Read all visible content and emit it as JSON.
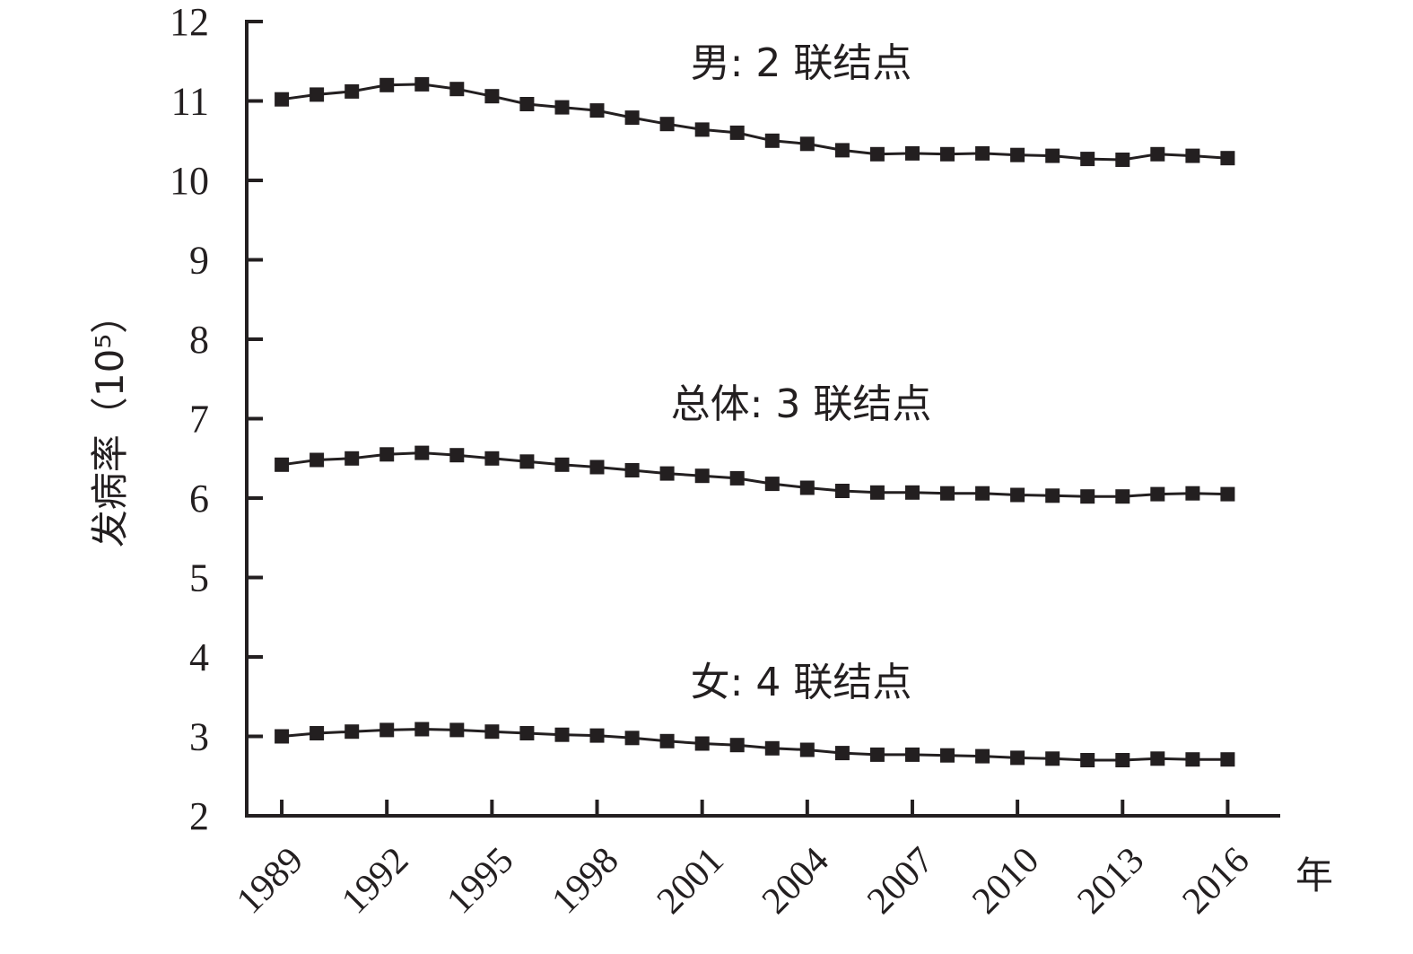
{
  "chart_data": {
    "type": "line",
    "ylabel": "发病率（10⁵）",
    "xunit": "年",
    "ylim": [
      2,
      12
    ],
    "yticks": [
      "2",
      "3",
      "4",
      "5",
      "6",
      "7",
      "8",
      "9",
      "10",
      "11",
      "12"
    ],
    "xlim": [
      1988,
      2017.5
    ],
    "xticks": [
      "1989",
      "1992",
      "1995",
      "1998",
      "2001",
      "2004",
      "2007",
      "2010",
      "2013",
      "2016"
    ],
    "grid": false,
    "marker": "square",
    "line_color": "#231f20",
    "x": [
      1989,
      1990,
      1991,
      1992,
      1993,
      1994,
      1995,
      1996,
      1997,
      1998,
      1999,
      2000,
      2001,
      2002,
      2003,
      2004,
      2005,
      2006,
      2007,
      2008,
      2009,
      2010,
      2011,
      2012,
      2013,
      2014,
      2015,
      2016
    ],
    "series": [
      {
        "annotation": "男: 2 联结点",
        "values": [
          11.02,
          11.08,
          11.12,
          11.2,
          11.21,
          11.15,
          11.06,
          10.96,
          10.92,
          10.88,
          10.79,
          10.71,
          10.64,
          10.6,
          10.5,
          10.46,
          10.38,
          10.33,
          10.34,
          10.33,
          10.34,
          10.32,
          10.31,
          10.27,
          10.26,
          10.33,
          10.31,
          10.28
        ]
      },
      {
        "annotation": "总体: 3 联结点",
        "values": [
          6.42,
          6.48,
          6.5,
          6.55,
          6.57,
          6.54,
          6.5,
          6.46,
          6.42,
          6.39,
          6.35,
          6.31,
          6.28,
          6.25,
          6.18,
          6.13,
          6.09,
          6.07,
          6.07,
          6.06,
          6.06,
          6.04,
          6.03,
          6.02,
          6.02,
          6.05,
          6.06,
          6.05
        ]
      },
      {
        "annotation": "女: 4 联结点",
        "values": [
          3.0,
          3.04,
          3.06,
          3.08,
          3.09,
          3.08,
          3.06,
          3.04,
          3.02,
          3.01,
          2.98,
          2.94,
          2.91,
          2.89,
          2.85,
          2.83,
          2.79,
          2.77,
          2.77,
          2.76,
          2.75,
          2.73,
          2.72,
          2.7,
          2.7,
          2.72,
          2.71,
          2.71
        ]
      }
    ]
  }
}
